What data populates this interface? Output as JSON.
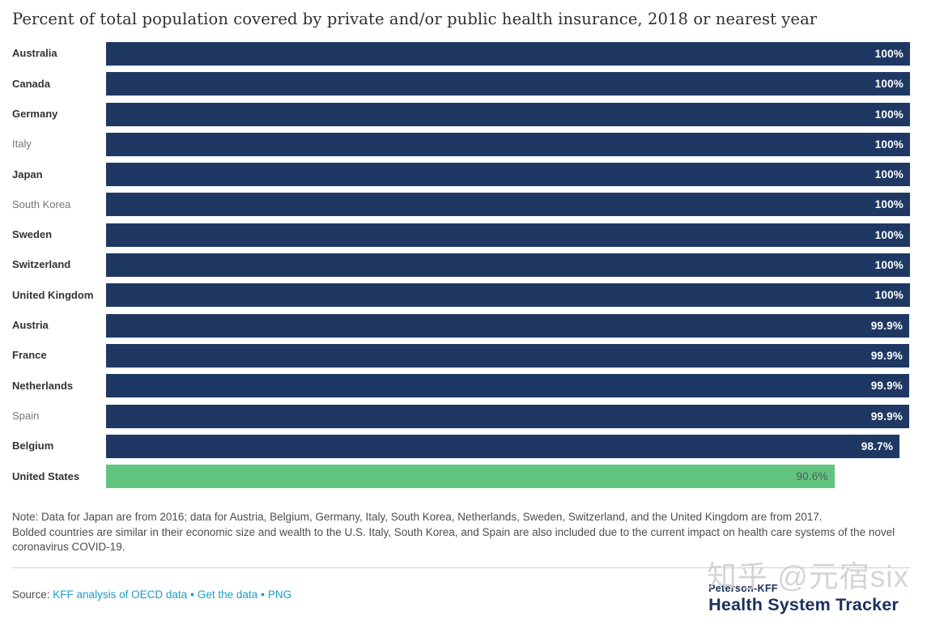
{
  "title": "Percent of total population covered by private and/or public health insurance, 2018 or nearest year",
  "chart_data": {
    "type": "bar",
    "orientation": "horizontal",
    "xlim": [
      0,
      100
    ],
    "unit": "%",
    "grid": false,
    "colors": {
      "default_bar": "#1f3863",
      "highlight_bar": "#61c47f",
      "value_label": "#ffffff",
      "highlight_value_label": "#58595b",
      "bold_country_label": "#333333",
      "regular_country_label": "#757575"
    },
    "categories": [
      "Australia",
      "Canada",
      "Germany",
      "Italy",
      "Japan",
      "South Korea",
      "Sweden",
      "Switzerland",
      "United Kingdom",
      "Austria",
      "France",
      "Netherlands",
      "Spain",
      "Belgium",
      "United States"
    ],
    "values": [
      100,
      100,
      100,
      100,
      100,
      100,
      100,
      100,
      100,
      99.9,
      99.9,
      99.9,
      99.9,
      98.7,
      90.6
    ],
    "rows": [
      {
        "label": "Australia",
        "value": 100,
        "display": "100%",
        "bold": true,
        "highlight": false
      },
      {
        "label": "Canada",
        "value": 100,
        "display": "100%",
        "bold": true,
        "highlight": false
      },
      {
        "label": "Germany",
        "value": 100,
        "display": "100%",
        "bold": true,
        "highlight": false
      },
      {
        "label": "Italy",
        "value": 100,
        "display": "100%",
        "bold": false,
        "highlight": false
      },
      {
        "label": "Japan",
        "value": 100,
        "display": "100%",
        "bold": true,
        "highlight": false
      },
      {
        "label": "South Korea",
        "value": 100,
        "display": "100%",
        "bold": false,
        "highlight": false
      },
      {
        "label": "Sweden",
        "value": 100,
        "display": "100%",
        "bold": true,
        "highlight": false
      },
      {
        "label": "Switzerland",
        "value": 100,
        "display": "100%",
        "bold": true,
        "highlight": false
      },
      {
        "label": "United Kingdom",
        "value": 100,
        "display": "100%",
        "bold": true,
        "highlight": false
      },
      {
        "label": "Austria",
        "value": 99.9,
        "display": "99.9%",
        "bold": true,
        "highlight": false
      },
      {
        "label": "France",
        "value": 99.9,
        "display": "99.9%",
        "bold": true,
        "highlight": false
      },
      {
        "label": "Netherlands",
        "value": 99.9,
        "display": "99.9%",
        "bold": true,
        "highlight": false
      },
      {
        "label": "Spain",
        "value": 99.9,
        "display": "99.9%",
        "bold": false,
        "highlight": false
      },
      {
        "label": "Belgium",
        "value": 98.7,
        "display": "98.7%",
        "bold": true,
        "highlight": false
      },
      {
        "label": "United States",
        "value": 90.6,
        "display": "90.6%",
        "bold": true,
        "highlight": true
      }
    ]
  },
  "note": {
    "line1": "Note: Data for Japan are from 2016; data for Austria, Belgium, Germany, Italy, South Korea, Netherlands, Sweden, Switzerland, and the United Kingdom are from 2017.",
    "line2": "Bolded countries are similar in their economic size and wealth to the U.S. Italy, South Korea, and Spain are also included due to the current impact on health care systems of the novel coronavirus COVID-19."
  },
  "source": {
    "label": "Source:",
    "links": [
      "KFF analysis of OECD data",
      "Get the data",
      "PNG"
    ],
    "separator": "•"
  },
  "logo": {
    "top": "Peterson-KFF",
    "bottom": "Health System Tracker"
  },
  "watermark": "知乎 @元宿six"
}
